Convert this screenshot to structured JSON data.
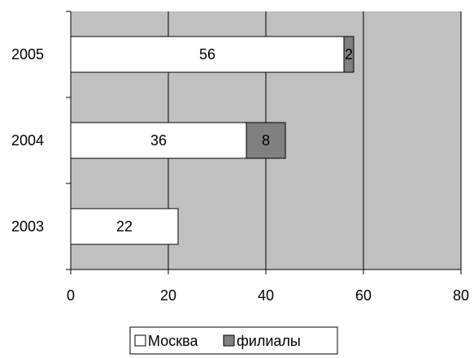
{
  "chart_data": {
    "type": "bar",
    "orientation": "horizontal",
    "stacked": true,
    "categories": [
      "2005",
      "2004",
      "2003"
    ],
    "series": [
      {
        "name": "Москва",
        "values": [
          56,
          36,
          22
        ],
        "color": "#ffffff"
      },
      {
        "name": "филиалы",
        "values": [
          2,
          8,
          null
        ],
        "color": "#808080"
      }
    ],
    "data_labels": [
      [
        "56",
        "36",
        "22"
      ],
      [
        "2",
        "8",
        ""
      ]
    ],
    "xlim": [
      0,
      80
    ],
    "x_ticks": [
      "0",
      "20",
      "40",
      "60",
      "80"
    ],
    "plot_background": "#c0c0c0",
    "grid": true,
    "legend_position": "bottom",
    "title": "",
    "xlabel": "",
    "ylabel": ""
  }
}
